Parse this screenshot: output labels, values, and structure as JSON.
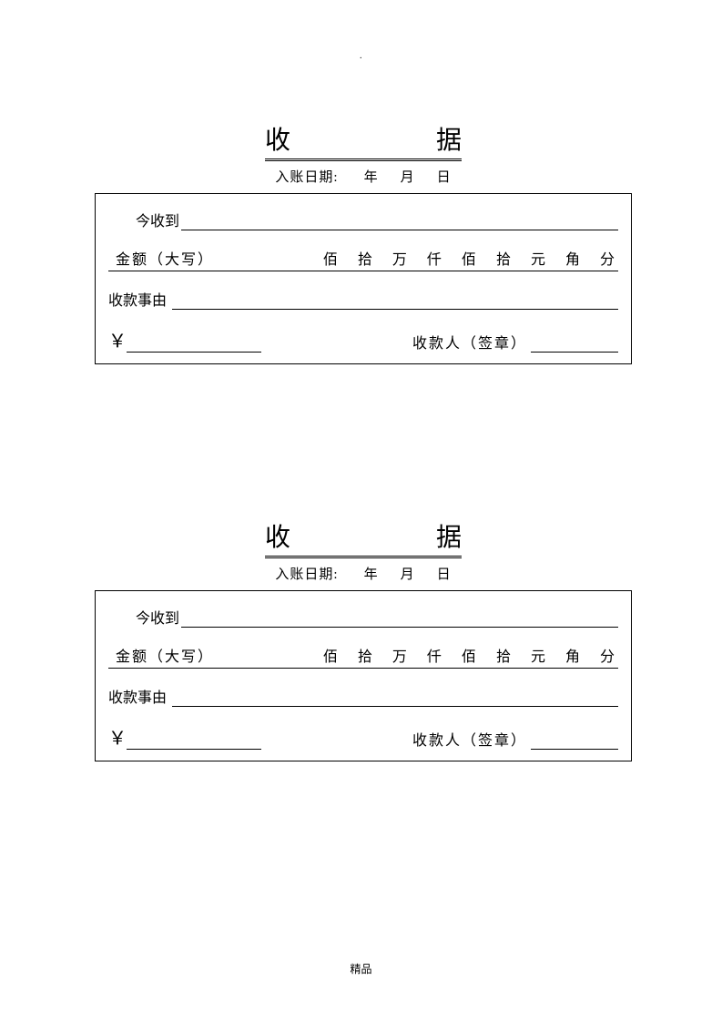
{
  "header_dot": ".",
  "receipt": {
    "title_char1": "收",
    "title_char2": "据",
    "date_label": "入账日期:",
    "year": "年",
    "month": "月",
    "day": "日",
    "received_label": "今收到",
    "amount_label": "金额（大写）",
    "units": [
      "佰",
      "拾",
      "万",
      "仟",
      "佰",
      "拾",
      "元",
      "角",
      "分"
    ],
    "reason_label": "收款事由",
    "currency_symbol": "￥",
    "payee_label": "收款人（签章）"
  },
  "footer": "精品"
}
